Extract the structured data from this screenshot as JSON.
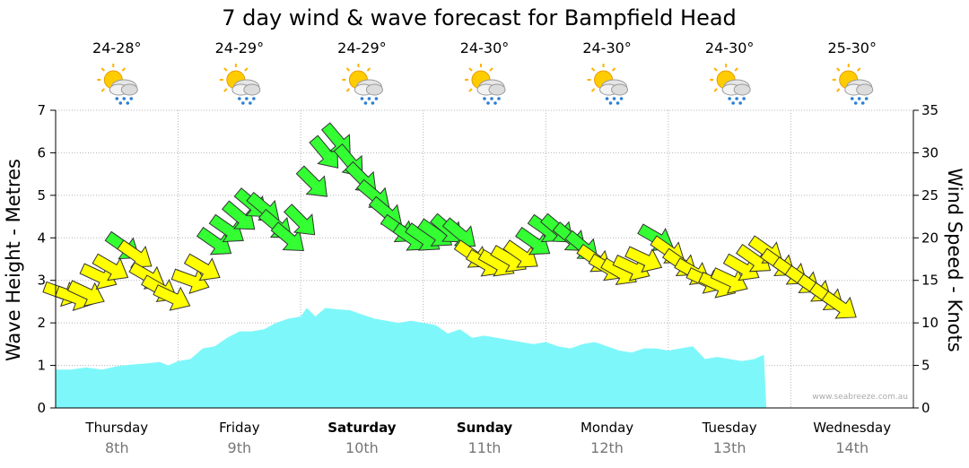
{
  "chart_data": {
    "type": "area",
    "title": "7 day wind & wave forecast for Bampfield Head",
    "ylabel_left": "Wave Height - Metres",
    "ylabel_right": "Wind Speed - Knots",
    "ylim_left": [
      0,
      7
    ],
    "ylim_right": [
      0,
      35
    ],
    "yticks_left": [
      "0",
      "1",
      "2",
      "3",
      "4",
      "5",
      "6",
      "7"
    ],
    "yticks_right": [
      "0",
      "5",
      "10",
      "15",
      "20",
      "25",
      "30",
      "35"
    ],
    "grid": true,
    "days": [
      {
        "name": "Thursday",
        "date": "8th",
        "bold": false,
        "temp": "24-28°",
        "weather": "partly-cloudy-rain-icon"
      },
      {
        "name": "Friday",
        "date": "9th",
        "bold": false,
        "temp": "24-29°",
        "weather": "partly-cloudy-heavy-rain-icon"
      },
      {
        "name": "Saturday",
        "date": "10th",
        "bold": true,
        "temp": "24-29°",
        "weather": "partly-cloudy-rain-icon"
      },
      {
        "name": "Sunday",
        "date": "11th",
        "bold": true,
        "temp": "24-30°",
        "weather": "partly-cloudy-rain-icon"
      },
      {
        "name": "Monday",
        "date": "12th",
        "bold": false,
        "temp": "24-30°",
        "weather": "partly-cloudy-rain-icon"
      },
      {
        "name": "Tuesday",
        "date": "13th",
        "bold": false,
        "temp": "24-30°",
        "weather": "partly-cloudy-rain-icon"
      },
      {
        "name": "Wednesday",
        "date": "14th",
        "bold": false,
        "temp": "25-30°",
        "weather": "partly-cloudy-rain-icon"
      }
    ],
    "wave_series": {
      "name": "Wave Height",
      "unit": "m",
      "color": "#7ef7fa",
      "points": [
        [
          0,
          0.9
        ],
        [
          0.12,
          0.9
        ],
        [
          0.25,
          0.95
        ],
        [
          0.38,
          0.9
        ],
        [
          0.5,
          0.98
        ],
        [
          0.62,
          1.02
        ],
        [
          0.75,
          1.05
        ],
        [
          0.85,
          1.08
        ],
        [
          0.92,
          1.0
        ],
        [
          1.0,
          1.1
        ],
        [
          1.1,
          1.15
        ],
        [
          1.2,
          1.4
        ],
        [
          1.3,
          1.45
        ],
        [
          1.4,
          1.65
        ],
        [
          1.5,
          1.8
        ],
        [
          1.6,
          1.8
        ],
        [
          1.7,
          1.85
        ],
        [
          1.8,
          2.0
        ],
        [
          1.9,
          2.1
        ],
        [
          2.0,
          2.15
        ],
        [
          2.05,
          2.35
        ],
        [
          2.12,
          2.15
        ],
        [
          2.2,
          2.35
        ],
        [
          2.3,
          2.32
        ],
        [
          2.4,
          2.3
        ],
        [
          2.5,
          2.2
        ],
        [
          2.6,
          2.1
        ],
        [
          2.7,
          2.05
        ],
        [
          2.8,
          2.0
        ],
        [
          2.9,
          2.05
        ],
        [
          3.0,
          2.0
        ],
        [
          3.1,
          1.95
        ],
        [
          3.2,
          1.75
        ],
        [
          3.3,
          1.85
        ],
        [
          3.4,
          1.65
        ],
        [
          3.5,
          1.7
        ],
        [
          3.6,
          1.65
        ],
        [
          3.7,
          1.6
        ],
        [
          3.8,
          1.55
        ],
        [
          3.9,
          1.5
        ],
        [
          4.0,
          1.55
        ],
        [
          4.1,
          1.45
        ],
        [
          4.2,
          1.4
        ],
        [
          4.3,
          1.5
        ],
        [
          4.4,
          1.55
        ],
        [
          4.5,
          1.45
        ],
        [
          4.6,
          1.35
        ],
        [
          4.7,
          1.3
        ],
        [
          4.8,
          1.4
        ],
        [
          4.9,
          1.4
        ],
        [
          5.0,
          1.35
        ],
        [
          5.1,
          1.4
        ],
        [
          5.2,
          1.45
        ],
        [
          5.3,
          1.15
        ],
        [
          5.4,
          1.2
        ],
        [
          5.5,
          1.15
        ],
        [
          5.6,
          1.1
        ],
        [
          5.7,
          1.15
        ],
        [
          5.78,
          1.25
        ],
        [
          5.8,
          0
        ]
      ]
    },
    "wind_series": {
      "name": "Wind Speed",
      "unit": "knots",
      "arrow_colors": {
        "light": "#ffff00",
        "strong": "#33ff33"
      },
      "strong_threshold_knots": 19,
      "points": [
        {
          "t": 0.05,
          "kn": 13.5,
          "dir": 20
        },
        {
          "t": 0.15,
          "kn": 13.0,
          "dir": 20
        },
        {
          "t": 0.25,
          "kn": 13.5,
          "dir": 25
        },
        {
          "t": 0.35,
          "kn": 15.5,
          "dir": 25
        },
        {
          "t": 0.45,
          "kn": 16.5,
          "dir": 30
        },
        {
          "t": 0.55,
          "kn": 19.0,
          "dir": 35
        },
        {
          "t": 0.65,
          "kn": 18.0,
          "dir": 35
        },
        {
          "t": 0.75,
          "kn": 15.5,
          "dir": 30
        },
        {
          "t": 0.85,
          "kn": 14.0,
          "dir": 30
        },
        {
          "t": 0.95,
          "kn": 13.0,
          "dir": 25
        },
        {
          "t": 1.1,
          "kn": 15.0,
          "dir": 20
        },
        {
          "t": 1.2,
          "kn": 16.5,
          "dir": 30
        },
        {
          "t": 1.3,
          "kn": 19.5,
          "dir": 35
        },
        {
          "t": 1.4,
          "kn": 21.0,
          "dir": 35
        },
        {
          "t": 1.5,
          "kn": 22.5,
          "dir": 40
        },
        {
          "t": 1.6,
          "kn": 24.0,
          "dir": 40
        },
        {
          "t": 1.7,
          "kn": 23.5,
          "dir": 40
        },
        {
          "t": 1.8,
          "kn": 21.5,
          "dir": 40
        },
        {
          "t": 1.9,
          "kn": 20.0,
          "dir": 40
        },
        {
          "t": 2.0,
          "kn": 22.0,
          "dir": 45
        },
        {
          "t": 2.1,
          "kn": 26.5,
          "dir": 45
        },
        {
          "t": 2.2,
          "kn": 30.0,
          "dir": 50
        },
        {
          "t": 2.3,
          "kn": 31.5,
          "dir": 50
        },
        {
          "t": 2.4,
          "kn": 29.0,
          "dir": 50
        },
        {
          "t": 2.5,
          "kn": 27.0,
          "dir": 45
        },
        {
          "t": 2.6,
          "kn": 25.0,
          "dir": 40
        },
        {
          "t": 2.7,
          "kn": 23.0,
          "dir": 40
        },
        {
          "t": 2.8,
          "kn": 21.0,
          "dir": 35
        },
        {
          "t": 2.9,
          "kn": 20.0,
          "dir": 35
        },
        {
          "t": 3.0,
          "kn": 20.0,
          "dir": 35
        },
        {
          "t": 3.1,
          "kn": 20.5,
          "dir": 35
        },
        {
          "t": 3.2,
          "kn": 21.0,
          "dir": 40
        },
        {
          "t": 3.3,
          "kn": 20.5,
          "dir": 40
        },
        {
          "t": 3.4,
          "kn": 18.0,
          "dir": 35
        },
        {
          "t": 3.5,
          "kn": 17.0,
          "dir": 30
        },
        {
          "t": 3.6,
          "kn": 17.0,
          "dir": 30
        },
        {
          "t": 3.7,
          "kn": 17.5,
          "dir": 30
        },
        {
          "t": 3.8,
          "kn": 18.0,
          "dir": 35
        },
        {
          "t": 3.9,
          "kn": 19.5,
          "dir": 35
        },
        {
          "t": 4.0,
          "kn": 21.0,
          "dir": 35
        },
        {
          "t": 4.1,
          "kn": 21.0,
          "dir": 40
        },
        {
          "t": 4.2,
          "kn": 20.0,
          "dir": 40
        },
        {
          "t": 4.3,
          "kn": 19.0,
          "dir": 40
        },
        {
          "t": 4.4,
          "kn": 17.5,
          "dir": 35
        },
        {
          "t": 4.5,
          "kn": 16.5,
          "dir": 30
        },
        {
          "t": 4.6,
          "kn": 16.0,
          "dir": 30
        },
        {
          "t": 4.7,
          "kn": 16.5,
          "dir": 25
        },
        {
          "t": 4.8,
          "kn": 17.5,
          "dir": 25
        },
        {
          "t": 4.9,
          "kn": 20.0,
          "dir": 30
        },
        {
          "t": 5.0,
          "kn": 18.5,
          "dir": 35
        },
        {
          "t": 5.1,
          "kn": 17.0,
          "dir": 35
        },
        {
          "t": 5.2,
          "kn": 16.0,
          "dir": 30
        },
        {
          "t": 5.3,
          "kn": 15.0,
          "dir": 25
        },
        {
          "t": 5.4,
          "kn": 14.5,
          "dir": 25
        },
        {
          "t": 5.5,
          "kn": 15.0,
          "dir": 25
        },
        {
          "t": 5.6,
          "kn": 16.5,
          "dir": 30
        },
        {
          "t": 5.7,
          "kn": 17.5,
          "dir": 35
        },
        {
          "t": 5.8,
          "kn": 18.5,
          "dir": 35
        },
        {
          "t": 5.9,
          "kn": 17.0,
          "dir": 35
        },
        {
          "t": 6.0,
          "kn": 16.0,
          "dir": 35
        },
        {
          "t": 6.1,
          "kn": 15.0,
          "dir": 35
        },
        {
          "t": 6.2,
          "kn": 14.0,
          "dir": 35
        },
        {
          "t": 6.3,
          "kn": 13.0,
          "dir": 35
        },
        {
          "t": 6.4,
          "kn": 12.0,
          "dir": 35
        }
      ]
    }
  },
  "credit": "www.seabreeze.com.au"
}
